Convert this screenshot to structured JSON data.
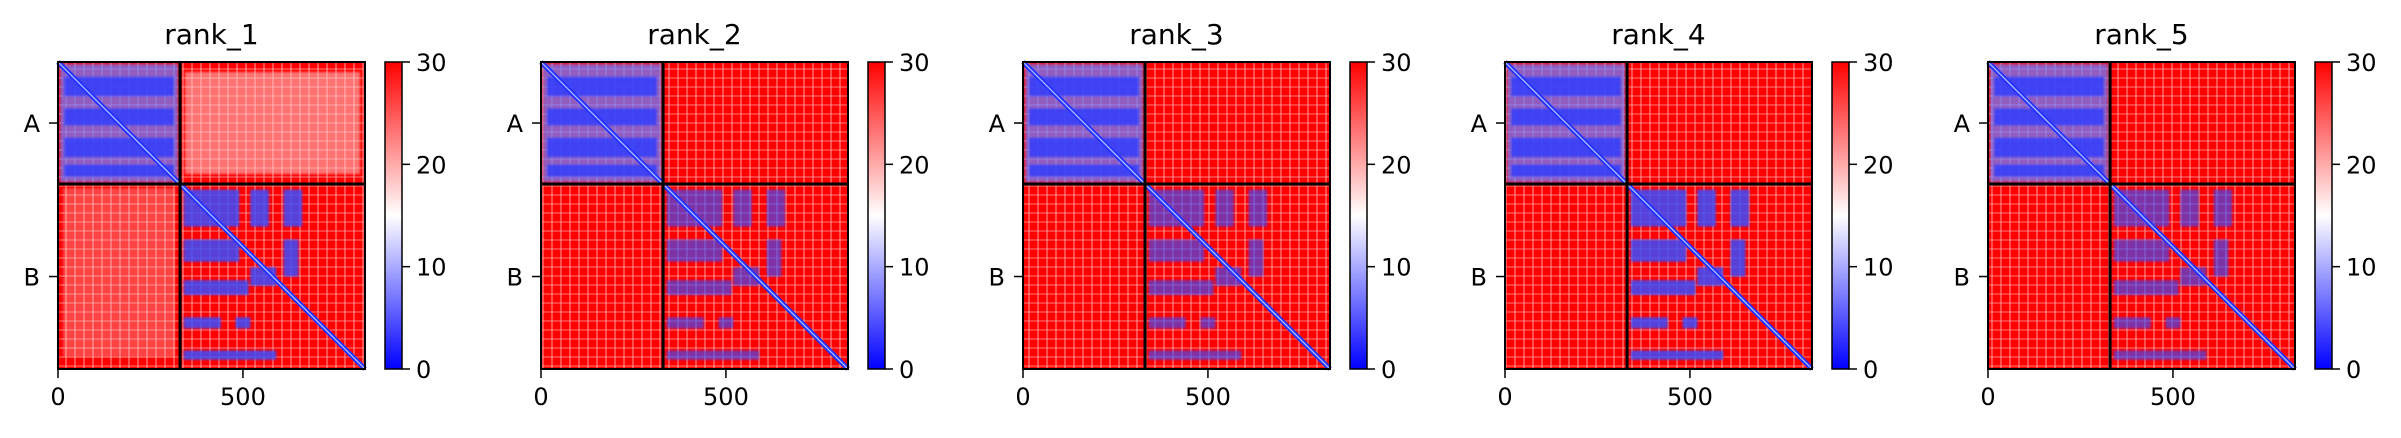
{
  "chart_data": [
    {
      "type": "heatmap",
      "title": "rank_1",
      "chains": [
        "A",
        "B"
      ],
      "chain_boundary": 330,
      "xlim": [
        0,
        830
      ],
      "xticks": [
        0,
        500
      ],
      "cbar": {
        "min": 0,
        "max": 30,
        "ticks": [
          0,
          10,
          20,
          30
        ],
        "colors": [
          "#0000ff",
          "#ffffff",
          "#ff0000"
        ]
      }
    },
    {
      "type": "heatmap",
      "title": "rank_2",
      "chains": [
        "A",
        "B"
      ],
      "chain_boundary": 330,
      "xlim": [
        0,
        830
      ],
      "xticks": [
        0,
        500
      ],
      "cbar": {
        "min": 0,
        "max": 30,
        "ticks": [
          0,
          10,
          20,
          30
        ],
        "colors": [
          "#0000ff",
          "#ffffff",
          "#ff0000"
        ]
      }
    },
    {
      "type": "heatmap",
      "title": "rank_3",
      "chains": [
        "A",
        "B"
      ],
      "chain_boundary": 330,
      "xlim": [
        0,
        830
      ],
      "xticks": [
        0,
        500
      ],
      "cbar": {
        "min": 0,
        "max": 30,
        "ticks": [
          0,
          10,
          20,
          30
        ],
        "colors": [
          "#0000ff",
          "#ffffff",
          "#ff0000"
        ]
      }
    },
    {
      "type": "heatmap",
      "title": "rank_4",
      "chains": [
        "A",
        "B"
      ],
      "chain_boundary": 330,
      "xlim": [
        0,
        830
      ],
      "xticks": [
        0,
        500
      ],
      "cbar": {
        "min": 0,
        "max": 30,
        "ticks": [
          0,
          10,
          20,
          30
        ],
        "colors": [
          "#0000ff",
          "#ffffff",
          "#ff0000"
        ]
      }
    },
    {
      "type": "heatmap",
      "title": "rank_5",
      "chains": [
        "A",
        "B"
      ],
      "chain_boundary": 330,
      "xlim": [
        0,
        830
      ],
      "xticks": [
        0,
        500
      ],
      "cbar": {
        "min": 0,
        "max": 30,
        "ticks": [
          0,
          10,
          20,
          30
        ],
        "colors": [
          "#0000ff",
          "#ffffff",
          "#ff0000"
        ]
      }
    }
  ]
}
